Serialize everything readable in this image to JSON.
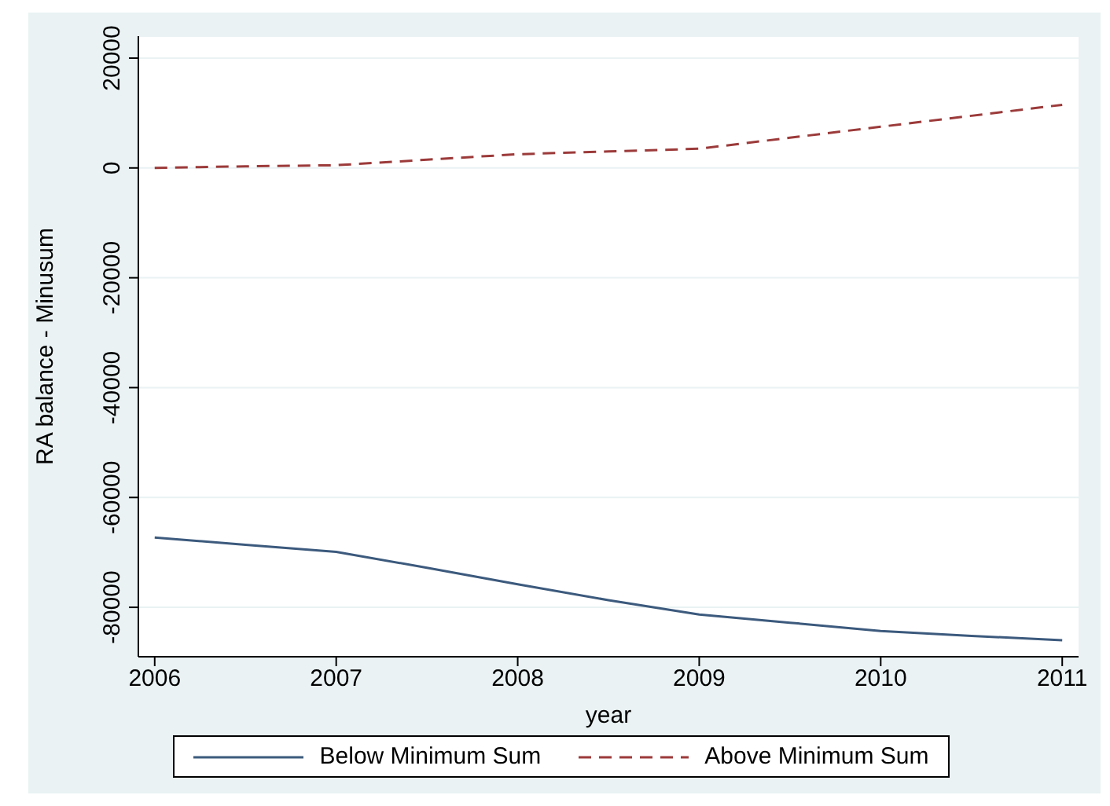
{
  "chart_data": {
    "type": "line",
    "xlabel": "year",
    "ylabel": "RA balance - Minusum",
    "x": [
      2006,
      2006.5,
      2007,
      2007.5,
      2008,
      2008.5,
      2009,
      2009.5,
      2010,
      2010.5,
      2011
    ],
    "series": [
      {
        "name": "Below Minimum Sum",
        "color": "#3c5a7d",
        "line_style": "solid",
        "values": [
          -67300,
          -68600,
          -69900,
          -72800,
          -75800,
          -78700,
          -81300,
          -82800,
          -84300,
          -85200,
          -86000
        ]
      },
      {
        "name": "Above Minimum Sum",
        "color": "#9c3a3a",
        "line_style": "dashed",
        "values": [
          0,
          300,
          500,
          1500,
          2500,
          3000,
          3500,
          5500,
          7500,
          9500,
          11500
        ]
      }
    ],
    "xlim": [
      2005.91,
      2011.09
    ],
    "xticks": [
      2006,
      2007,
      2008,
      2009,
      2010,
      2011
    ],
    "ylim": [
      -89000,
      24000
    ],
    "yticks": [
      -80000,
      -60000,
      -40000,
      -20000,
      0,
      20000
    ],
    "grid": "y",
    "legend": "bottom",
    "marker": "none"
  }
}
